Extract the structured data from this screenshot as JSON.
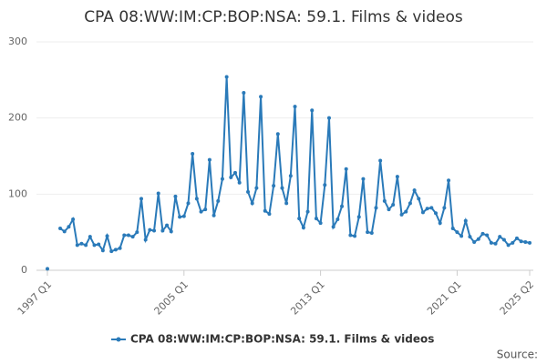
{
  "chart_data": {
    "type": "line",
    "title": "CPA 08:WW:IM:CP:BOP:NSA: 59.1. Films & videos",
    "source": "Source:",
    "categories": [
      "1997 Q1",
      null,
      null,
      null,
      null,
      null,
      null,
      null,
      null,
      null,
      null,
      null,
      null,
      null,
      null,
      null,
      null,
      null,
      null,
      null,
      null,
      null,
      null,
      null,
      null,
      null,
      null,
      null,
      null,
      null,
      null,
      null,
      "2005 Q1",
      null,
      null,
      null,
      null,
      null,
      null,
      null,
      null,
      null,
      null,
      null,
      null,
      null,
      null,
      null,
      null,
      null,
      null,
      null,
      null,
      null,
      null,
      null,
      null,
      null,
      null,
      null,
      null,
      null,
      null,
      null,
      "2013 Q1",
      null,
      null,
      null,
      null,
      null,
      null,
      null,
      null,
      null,
      null,
      null,
      null,
      null,
      null,
      null,
      null,
      null,
      null,
      null,
      null,
      null,
      null,
      null,
      null,
      null,
      null,
      null,
      null,
      null,
      null,
      null,
      "2021 Q1",
      null,
      null,
      null,
      null,
      null,
      null,
      null,
      null,
      null,
      null,
      null,
      null,
      null,
      null,
      null,
      null,
      "2025 Q2"
    ],
    "series": [
      {
        "name": "CPA 08:WW:IM:CP:BOP:NSA: 59.1. Films & videos",
        "color": "#2a7ab9",
        "values": [
          2,
          null,
          null,
          55,
          51,
          57,
          67,
          33,
          35,
          33,
          44,
          33,
          34,
          26,
          45,
          25,
          27,
          29,
          46,
          46,
          44,
          50,
          94,
          40,
          53,
          52,
          101,
          52,
          59,
          51,
          97,
          70,
          71,
          88,
          153,
          94,
          77,
          80,
          145,
          72,
          91,
          120,
          254,
          122,
          128,
          115,
          233,
          103,
          88,
          108,
          228,
          78,
          74,
          111,
          179,
          108,
          88,
          124,
          215,
          68,
          56,
          77,
          210,
          68,
          62,
          112,
          200,
          57,
          67,
          84,
          133,
          46,
          45,
          70,
          120,
          50,
          49,
          82,
          144,
          91,
          80,
          86,
          123,
          73,
          77,
          88,
          105,
          94,
          76,
          81,
          82,
          75,
          62,
          82,
          118,
          55,
          50,
          45,
          65,
          44,
          37,
          41,
          48,
          46,
          36,
          35,
          44,
          40,
          33,
          36,
          42,
          38,
          37,
          36
        ]
      }
    ],
    "ylim": [
      0,
      300
    ],
    "yticks": [
      0,
      100,
      200,
      300
    ],
    "grid": true,
    "legend": "bottom"
  }
}
